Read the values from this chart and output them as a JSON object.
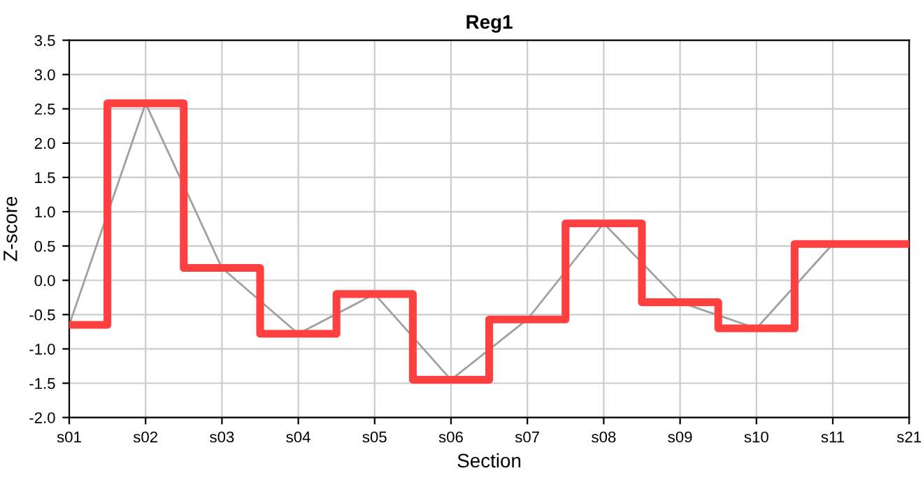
{
  "chart_data": {
    "type": "step",
    "title": "Reg1",
    "xlabel": "Section",
    "ylabel": "Z-score",
    "categories": [
      "s01",
      "s02",
      "s03",
      "s04",
      "s05",
      "s06",
      "s07",
      "s08",
      "s09",
      "s10",
      "s11",
      "s21"
    ],
    "series": [
      {
        "type": "line",
        "color": "#a0a0a0",
        "values": [
          -0.65,
          2.58,
          0.18,
          -0.78,
          -0.2,
          -1.45,
          -0.57,
          0.83,
          -0.32,
          -0.7,
          0.53,
          0.53
        ]
      },
      {
        "color": "#ff4040",
        "values": [
          -0.65,
          2.58,
          0.18,
          -0.78,
          -0.2,
          -1.45,
          -0.57,
          0.83,
          -0.32,
          -0.7,
          0.53,
          0.53
        ]
      }
    ],
    "ylim": [
      -2,
      3.5
    ],
    "yticks": [
      {
        "value": -2,
        "label": "-2.0"
      },
      -1.5,
      {
        "value": -1,
        "label": "-1.0"
      },
      -0.5,
      {
        "value": 0,
        "label": "0.0"
      },
      0.5,
      {
        "value": 1,
        "label": "1.0"
      },
      1.5,
      {
        "value": 2,
        "label": "2.0"
      },
      2.5,
      {
        "value": 3,
        "label": "3.0"
      },
      3.5
    ],
    "grid": true
  }
}
